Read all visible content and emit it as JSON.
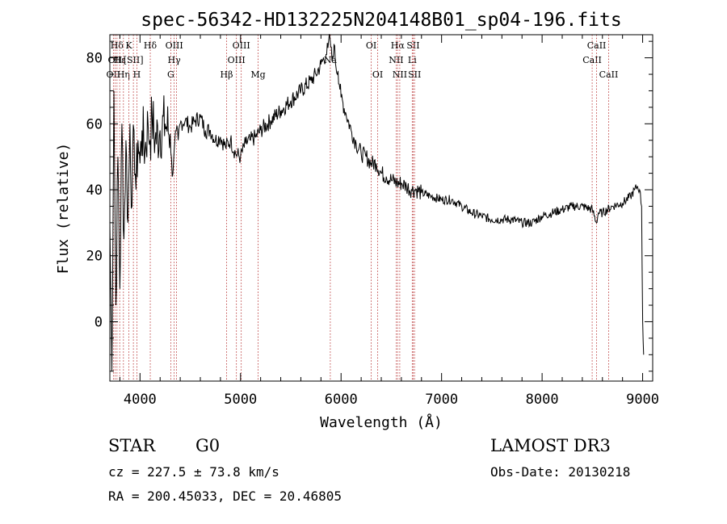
{
  "chart_data": {
    "type": "line",
    "title": "spec-56342-HD132225N204148B01_sp04-196.fits",
    "xlabel": "Wavelength (Å)",
    "ylabel": "Flux (relative)",
    "xlim": [
      3700,
      9100
    ],
    "ylim": [
      -18,
      87
    ],
    "xticks": [
      4000,
      5000,
      6000,
      7000,
      8000,
      9000
    ],
    "yticks": [
      0,
      20,
      40,
      60,
      80
    ],
    "grid": false,
    "series": [
      {
        "name": "flux",
        "x": [
          3700,
          3720,
          3740,
          3760,
          3780,
          3800,
          3820,
          3840,
          3860,
          3880,
          3900,
          3920,
          3940,
          3960,
          3980,
          4000,
          4020,
          4050,
          4080,
          4100,
          4120,
          4150,
          4200,
          4250,
          4300,
          4320,
          4340,
          4360,
          4380,
          4400,
          4450,
          4500,
          4550,
          4600,
          4650,
          4700,
          4750,
          4800,
          4850,
          4900,
          4950,
          5000,
          5050,
          5100,
          5150,
          5200,
          5300,
          5400,
          5500,
          5600,
          5700,
          5750,
          5800,
          5850,
          5870,
          5890,
          5910,
          5930,
          5950,
          5970,
          6000,
          6050,
          6100,
          6150,
          6200,
          6250,
          6300,
          6350,
          6400,
          6450,
          6500,
          6560,
          6600,
          6650,
          6700,
          6750,
          6800,
          6900,
          7000,
          7100,
          7200,
          7300,
          7400,
          7500,
          7600,
          7700,
          7800,
          7900,
          8000,
          8100,
          8200,
          8300,
          8400,
          8500,
          8540,
          8560,
          8600,
          8700,
          8800,
          8880,
          8920,
          8950,
          8970,
          8990,
          9000,
          9010
        ],
        "values": [
          30,
          -15,
          70,
          5,
          50,
          10,
          60,
          25,
          55,
          30,
          60,
          35,
          58,
          40,
          55,
          48,
          58,
          52,
          60,
          55,
          62,
          55,
          58,
          60,
          57,
          44,
          52,
          58,
          55,
          60,
          61,
          59,
          61,
          62,
          58,
          58,
          55,
          56,
          53,
          55,
          51,
          50,
          54,
          55,
          56,
          58,
          61,
          64,
          67,
          70,
          73,
          75,
          78,
          81,
          83,
          86,
          79,
          84,
          77,
          76,
          68,
          63,
          58,
          54,
          51,
          50,
          48,
          48,
          45,
          44,
          43,
          42,
          42,
          41,
          40,
          40,
          39,
          38,
          37,
          37,
          35,
          33,
          32,
          31,
          31,
          31,
          30,
          30,
          32,
          33,
          34,
          35,
          35,
          34,
          30,
          33,
          33,
          35,
          36,
          38,
          40,
          41,
          40,
          35,
          0,
          -10
        ]
      }
    ],
    "line_marks": [
      {
        "wl": 3735,
        "labels": [
          "OII"
        ],
        "row": 3
      },
      {
        "wl": 3751,
        "labels": [
          "OII"
        ],
        "row": 2
      },
      {
        "wl": 3771,
        "labels": [
          "Hδ"
        ],
        "row": 1
      },
      {
        "wl": 3798,
        "labels": [
          "Hε"
        ],
        "row": 2
      },
      {
        "wl": 3835,
        "labels": [
          "Hη"
        ],
        "row": 3
      },
      {
        "wl": 3889,
        "labels": [
          "K"
        ],
        "row": 1
      },
      {
        "wl": 3934,
        "labels": [
          "[SII]"
        ],
        "row": 2
      },
      {
        "wl": 3969,
        "labels": [
          "H"
        ],
        "row": 3
      },
      {
        "wl": 4102,
        "labels": [
          "Hδ"
        ],
        "row": 1
      },
      {
        "wl": 4306,
        "labels": [
          "G"
        ],
        "row": 3
      },
      {
        "wl": 4340,
        "labels": [
          "OIII",
          "Hγ"
        ],
        "row": 1
      },
      {
        "wl": 4363,
        "labels": [],
        "row": 0
      },
      {
        "wl": 4861,
        "labels": [
          "Hβ"
        ],
        "row": 3
      },
      {
        "wl": 4959,
        "labels": [
          "OIII"
        ],
        "row": 2
      },
      {
        "wl": 5007,
        "labels": [
          "OIII"
        ],
        "row": 1
      },
      {
        "wl": 5175,
        "labels": [
          "Mg"
        ],
        "row": 3
      },
      {
        "wl": 5893,
        "labels": [
          "Na"
        ],
        "row": 2
      },
      {
        "wl": 6300,
        "labels": [
          "OI"
        ],
        "row": 1
      },
      {
        "wl": 6364,
        "labels": [
          "OI"
        ],
        "row": 3
      },
      {
        "wl": 6548,
        "labels": [
          "NII"
        ],
        "row": 2
      },
      {
        "wl": 6563,
        "labels": [
          "Hα"
        ],
        "row": 1
      },
      {
        "wl": 6584,
        "labels": [
          "NII"
        ],
        "row": 3
      },
      {
        "wl": 6708,
        "labels": [
          "Li"
        ],
        "row": 2
      },
      {
        "wl": 6717,
        "labels": [
          "SII"
        ],
        "row": 1
      },
      {
        "wl": 6731,
        "labels": [
          "SII"
        ],
        "row": 3
      },
      {
        "wl": 8498,
        "labels": [
          "CaII"
        ],
        "row": 2
      },
      {
        "wl": 8542,
        "labels": [
          "CaII"
        ],
        "row": 1
      },
      {
        "wl": 8662,
        "labels": [
          "CaII"
        ],
        "row": 3
      }
    ]
  },
  "info": {
    "class": "STAR",
    "subclass": "G0",
    "survey": "LAMOST DR3",
    "cz": "cz = 227.5 ± 73.8 km/s",
    "obs_date": "Obs-Date: 20130218",
    "coords": "RA = 200.45033, DEC =  20.46805"
  }
}
